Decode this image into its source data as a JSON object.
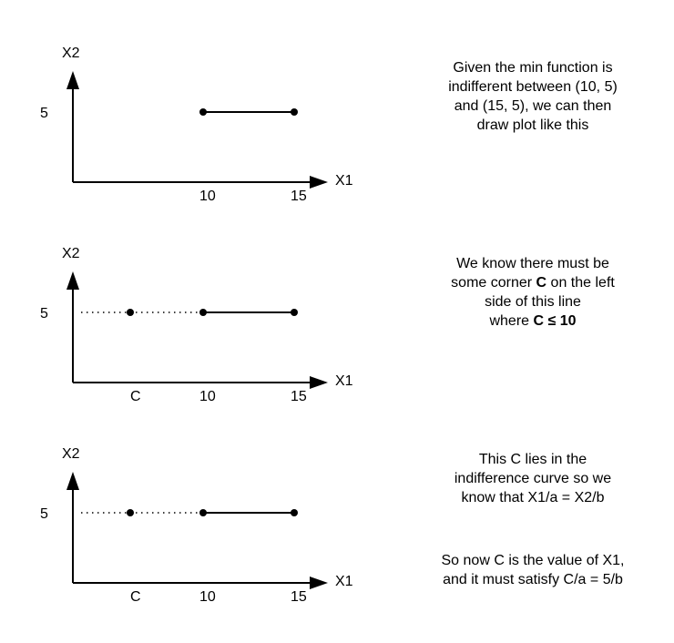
{
  "panels": [
    {
      "y_label": "X2",
      "x_label": "X1",
      "y_tick": "5",
      "x_ticks": {
        "c": "",
        "ten": "10",
        "fifteen": "15"
      },
      "note_lines": [
        "Given the min function is",
        "indifferent between (10, 5)",
        "and (15, 5), we can then",
        "draw plot like this"
      ]
    },
    {
      "y_label": "X2",
      "x_label": "X1",
      "y_tick": "5",
      "x_ticks": {
        "c": "C",
        "ten": "10",
        "fifteen": "15"
      },
      "note_lines": [
        [
          "We know there must be"
        ],
        [
          "some corner ",
          "C",
          " on the left"
        ],
        [
          "side of this line"
        ],
        [
          "where ",
          "C ≤ 10",
          ""
        ]
      ]
    },
    {
      "y_label": "X2",
      "x_label": "X1",
      "y_tick": "5",
      "x_ticks": {
        "c": "C",
        "ten": "10",
        "fifteen": "15"
      },
      "note_lines": [
        "This C lies in the",
        "indifference curve so we",
        "know that X1/a = X2/b"
      ],
      "note2_lines": [
        "So now C is the value of X1,",
        "and it must satisfy C/a = 5/b"
      ]
    }
  ]
}
